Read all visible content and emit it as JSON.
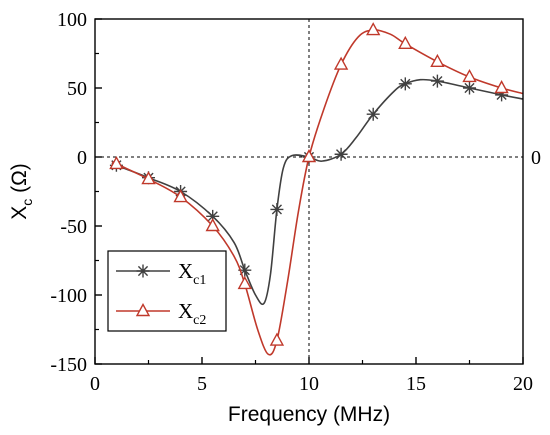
{
  "chart_data": {
    "type": "line",
    "xlabel": "Frequency (MHz)",
    "ylabel_main": "X",
    "ylabel_sub": "c",
    "ylabel_unit": " (Ω)",
    "xlim": [
      0,
      20
    ],
    "ylim": [
      -150,
      100
    ],
    "xticks": [
      0,
      5,
      10,
      15,
      20
    ],
    "yticks": [
      -150,
      -100,
      -50,
      0,
      50,
      100
    ],
    "grid": false,
    "legend_position": "bottom-left",
    "reference_lines": {
      "vertical_x": 10,
      "horizontal_y": 0,
      "right_label": "0"
    },
    "series": [
      {
        "name_main": "X",
        "name_sub": "c1",
        "color": "#404040",
        "marker": "asterisk",
        "markers": [
          [
            1.0,
            -6
          ],
          [
            2.5,
            -15
          ],
          [
            4.0,
            -25
          ],
          [
            5.5,
            -43
          ],
          [
            7.0,
            -82
          ],
          [
            8.5,
            -38
          ],
          [
            10.0,
            0
          ],
          [
            11.5,
            2
          ],
          [
            13.0,
            31
          ],
          [
            14.5,
            53
          ],
          [
            16.0,
            55
          ],
          [
            17.5,
            50
          ],
          [
            19.0,
            45
          ]
        ],
        "curve": [
          [
            0.8,
            -4
          ],
          [
            1.0,
            -6
          ],
          [
            2.5,
            -15
          ],
          [
            4.0,
            -25
          ],
          [
            5.5,
            -43
          ],
          [
            6.5,
            -62
          ],
          [
            7.0,
            -82
          ],
          [
            7.5,
            -100
          ],
          [
            7.9,
            -106
          ],
          [
            8.2,
            -85
          ],
          [
            8.5,
            -38
          ],
          [
            8.8,
            -8
          ],
          [
            9.2,
            1
          ],
          [
            10.0,
            0
          ],
          [
            10.6,
            -3
          ],
          [
            11.5,
            2
          ],
          [
            12.2,
            14
          ],
          [
            13.0,
            31
          ],
          [
            14.0,
            48
          ],
          [
            14.5,
            53
          ],
          [
            15.2,
            56
          ],
          [
            16.0,
            55
          ],
          [
            17.5,
            50
          ],
          [
            19.0,
            45
          ],
          [
            20.0,
            42
          ]
        ]
      },
      {
        "name_main": "X",
        "name_sub": "c2",
        "color": "#c0392b",
        "marker": "triangle",
        "markers": [
          [
            1.0,
            -5
          ],
          [
            2.5,
            -16
          ],
          [
            4.0,
            -29
          ],
          [
            5.5,
            -50
          ],
          [
            7.0,
            -92
          ],
          [
            8.5,
            -133
          ],
          [
            10.0,
            0
          ],
          [
            11.5,
            67
          ],
          [
            13.0,
            92
          ],
          [
            14.5,
            82
          ],
          [
            16.0,
            69
          ],
          [
            17.5,
            58
          ],
          [
            19.0,
            50
          ]
        ],
        "curve": [
          [
            0.8,
            -4
          ],
          [
            1.0,
            -5
          ],
          [
            2.5,
            -16
          ],
          [
            4.0,
            -29
          ],
          [
            5.5,
            -50
          ],
          [
            6.5,
            -72
          ],
          [
            7.0,
            -92
          ],
          [
            7.6,
            -125
          ],
          [
            8.1,
            -143
          ],
          [
            8.5,
            -133
          ],
          [
            9.0,
            -90
          ],
          [
            9.5,
            -40
          ],
          [
            10.0,
            0
          ],
          [
            10.7,
            35
          ],
          [
            11.5,
            67
          ],
          [
            12.3,
            87
          ],
          [
            13.0,
            92
          ],
          [
            13.8,
            89
          ],
          [
            14.5,
            82
          ],
          [
            16.0,
            69
          ],
          [
            17.5,
            58
          ],
          [
            19.0,
            50
          ],
          [
            20.0,
            46
          ]
        ]
      }
    ]
  }
}
